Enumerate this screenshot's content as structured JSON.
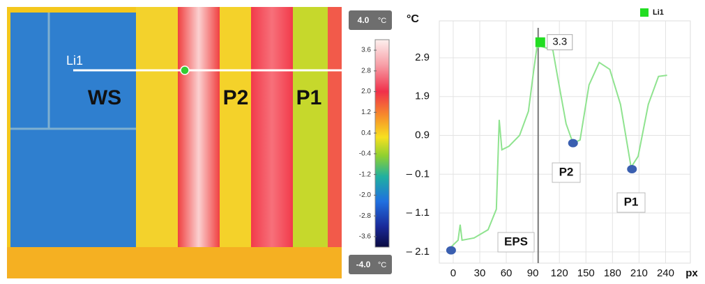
{
  "thermal_image": {
    "labels": [
      "Li1",
      "WS",
      "P2",
      "P1"
    ]
  },
  "colorbar": {
    "unit": "°C",
    "range": [
      {
        "value": -4,
        "label": "-4.0"
      },
      {
        "value": 4,
        "label": "4.0"
      }
    ],
    "ticks": [
      3.6,
      2.8,
      {
        "value": 2,
        "label": "2.0"
      },
      1.2,
      0.4,
      -0.4,
      -1.2,
      {
        "value": -2,
        "label": "-2.0"
      },
      -2.8,
      -3.6
    ]
  },
  "chart_data": {
    "type": "line",
    "ylabel": "°C",
    "xlabel": "px",
    "x": [
      -5.5,
      0,
      5.5,
      7.9,
      10,
      23.6,
      39.4,
      48.8,
      52,
      55,
      63,
      75,
      85,
      91,
      94.5,
      98.4,
      112.6,
      118,
      127.6,
      135.4,
      143.3,
      153.5,
      165,
      177,
      189,
      201,
      209,
      220.5,
      232,
      241.7
    ],
    "series": [
      {
        "name": "Li1",
        "color": "#8fe38f",
        "values": [
          -2.06,
          -1.92,
          -1.8,
          -1.4,
          -1.8,
          -1.74,
          -1.53,
          -1.0,
          1.3,
          0.53,
          0.62,
          0.9,
          1.52,
          2.58,
          3.15,
          3.2,
          3.1,
          2.4,
          1.2,
          0.7,
          0.78,
          2.2,
          2.78,
          2.6,
          1.7,
          0.08,
          0.36,
          1.7,
          2.42,
          2.45
        ]
      }
    ],
    "points": [
      {
        "x": -2.4,
        "y": -2.06,
        "color": "#3a5fb0"
      },
      {
        "x": 135.4,
        "y": 0.7,
        "color": "#3a5fb0"
      },
      {
        "x": 202,
        "y": 0.03,
        "color": "#3a5fb0"
      },
      {
        "x": 98.4,
        "y": 3.3,
        "color": "#22dd22",
        "label": "3.3"
      }
    ],
    "cursor_x": 96,
    "annotations": [
      "EPS",
      "P2",
      "P1"
    ],
    "xlim": [
      -15.7,
      268
    ],
    "ylim": [
      -2.39,
      3.85
    ],
    "xticks": [
      0,
      30,
      60,
      90,
      120,
      150,
      180,
      210,
      240
    ],
    "yticks": [
      2.9,
      1.9,
      0.9,
      {
        "value": -0.1,
        "label": "– 0.1"
      },
      {
        "value": -1.1,
        "label": "– 1.1"
      },
      {
        "value": -2.1,
        "label": "– 2.1"
      }
    ],
    "grid": true
  }
}
